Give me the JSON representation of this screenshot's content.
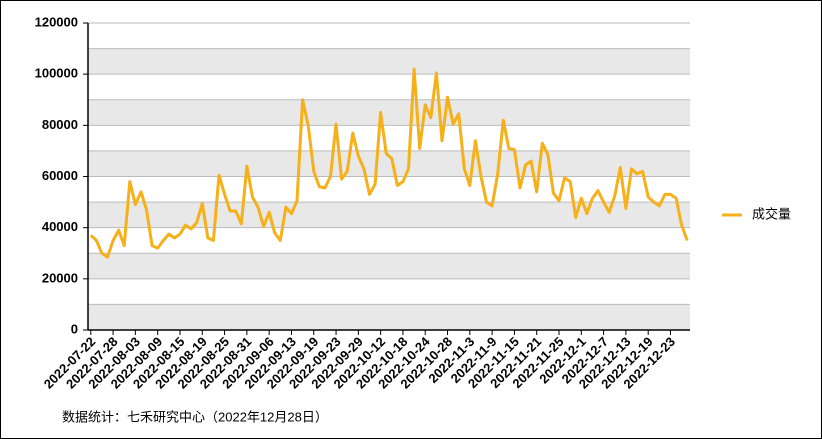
{
  "chart_data": {
    "type": "line",
    "categories": [
      "2022-07-22",
      null,
      null,
      null,
      "2022-07-28",
      null,
      null,
      null,
      "2022-08-03",
      null,
      null,
      null,
      "2022-08-09",
      null,
      null,
      null,
      "2022-08-15",
      null,
      null,
      null,
      "2022-08-19",
      null,
      null,
      null,
      "2022-08-25",
      null,
      null,
      null,
      "2022-08-31",
      null,
      null,
      null,
      "2022-09-06",
      null,
      null,
      null,
      "2022-09-13",
      null,
      null,
      null,
      "2022-09-19",
      null,
      null,
      null,
      "2022-09-23",
      null,
      null,
      null,
      "2022-09-29",
      null,
      null,
      null,
      "2022-10-12",
      null,
      null,
      null,
      "2022-10-18",
      null,
      null,
      null,
      "2022-10-24",
      null,
      null,
      null,
      "2022-10-28",
      null,
      null,
      null,
      "2022-11-3",
      null,
      null,
      null,
      "2022-11-9",
      null,
      null,
      null,
      "2022-11-15",
      null,
      null,
      null,
      "2022-11-21",
      null,
      null,
      null,
      "2022-11-25",
      null,
      null,
      null,
      "2022-12-1",
      null,
      null,
      null,
      "2022-12-7",
      null,
      null,
      null,
      "2022-12-13",
      null,
      null,
      null,
      "2022-12-19",
      null,
      null,
      null,
      "2022-12-23",
      null,
      null,
      null
    ],
    "series": [
      {
        "name": "成交量",
        "color": "#f5b01a",
        "values": [
          37000,
          35000,
          30000,
          28500,
          35000,
          39000,
          33000,
          58000,
          49000,
          54000,
          47000,
          33000,
          32000,
          35000,
          37500,
          36000,
          37500,
          41000,
          39500,
          42000,
          49500,
          36000,
          35000,
          60500,
          53000,
          46500,
          46500,
          41500,
          64000,
          52000,
          48000,
          40500,
          46000,
          38000,
          35000,
          48000,
          45500,
          50500,
          90000,
          80000,
          62000,
          56000,
          55500,
          60000,
          80500,
          59000,
          62000,
          77000,
          68000,
          63000,
          53000,
          57000,
          85000,
          69000,
          67000,
          56500,
          58000,
          63000,
          102000,
          71000,
          88000,
          83000,
          100500,
          74000,
          91000,
          80500,
          84500,
          63000,
          56500,
          74000,
          60000,
          50000,
          48500,
          61000,
          82000,
          71000,
          70500,
          55500,
          64500,
          66000,
          54000,
          73000,
          68500,
          53500,
          50500,
          59500,
          58000,
          44000,
          51500,
          45500,
          51500,
          54500,
          50000,
          46000,
          52500,
          63500,
          47500,
          63000,
          61000,
          62000,
          52000,
          50000,
          48500,
          53000,
          53000,
          51500,
          41000,
          35000
        ]
      }
    ],
    "ylim": [
      0,
      120000
    ],
    "yticks": [
      0,
      20000,
      40000,
      60000,
      80000,
      100000,
      120000
    ],
    "grid": true,
    "legend": "right",
    "note": "数据统计：七禾研究中心（2022年12月28日）"
  }
}
